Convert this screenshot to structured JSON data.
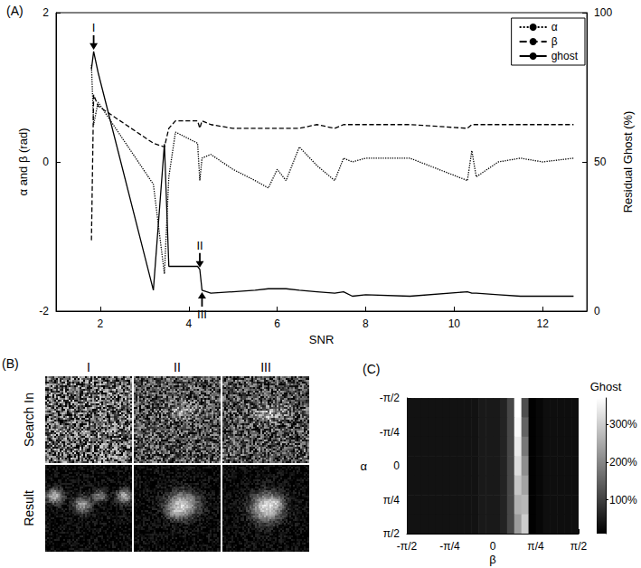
{
  "chart_data": [
    {
      "type": "line",
      "title": "(A)",
      "x_label": "SNR",
      "y_label": "α and β (rad)",
      "y2_label": "Residual Ghost (%)",
      "x": [
        1.8,
        1.85,
        1.95,
        3.2,
        3.45,
        3.55,
        3.7,
        4.2,
        4.25,
        4.3,
        4.5,
        5.0,
        5.5,
        5.8,
        6.0,
        6.2,
        6.5,
        6.9,
        7.3,
        7.5,
        7.7,
        8.0,
        9.0,
        10.3,
        10.4,
        10.5,
        11.0,
        11.5,
        12.0,
        12.7
      ],
      "series": [
        {
          "name": "α",
          "color": "#000000",
          "line_style": "dotted",
          "values": [
            1.3,
            0.5,
            0.8,
            -0.3,
            -1.5,
            -0.2,
            0.4,
            0.25,
            -0.25,
            0.05,
            0.1,
            -0.1,
            -0.25,
            -0.35,
            -0.1,
            -0.25,
            0.2,
            -0.05,
            -0.25,
            0.05,
            0.0,
            0.05,
            0.05,
            -0.25,
            0.15,
            -0.2,
            0.0,
            0.05,
            0.0,
            0.05
          ]
        },
        {
          "name": "β",
          "color": "#000000",
          "line_style": "dashed",
          "values": [
            -1.05,
            0.9,
            0.75,
            0.25,
            0.2,
            0.45,
            0.55,
            0.55,
            0.45,
            0.55,
            0.5,
            0.45,
            0.45,
            0.45,
            0.45,
            0.45,
            0.45,
            0.5,
            0.45,
            0.5,
            0.5,
            0.5,
            0.5,
            0.45,
            0.5,
            0.5,
            0.5,
            0.5,
            0.5,
            0.5
          ]
        },
        {
          "name": "ghost",
          "color": "#000000",
          "line_style": "solid",
          "axis": "y2",
          "values": [
            81,
            87,
            80,
            7,
            56,
            15,
            15,
            15,
            14,
            7,
            6,
            6.5,
            7,
            7.5,
            7.5,
            7.5,
            7,
            6.5,
            6,
            6.5,
            5,
            5.5,
            5,
            6.5,
            6,
            6,
            5.5,
            5,
            5,
            5
          ],
          "annotations": [
            {
              "text": "I",
              "x": 1.85,
              "y": 87,
              "position": "above"
            },
            {
              "text": "II",
              "x": 4.25,
              "y": 14,
              "position": "above"
            },
            {
              "text": "III",
              "x": 4.3,
              "y": 7,
              "position": "below"
            }
          ]
        }
      ],
      "xlim": [
        1,
        13
      ],
      "xticks": [
        2,
        4,
        6,
        8,
        10,
        12
      ],
      "ylim": [
        -2,
        2
      ],
      "yticks": [
        -2,
        0,
        2
      ],
      "y2lim": [
        0,
        100
      ],
      "y2ticks": [
        0,
        50,
        100
      ],
      "grid": false,
      "legend": "top-right"
    },
    {
      "type": "image_grid",
      "title": "(B)",
      "columns": [
        "I",
        "II",
        "III"
      ],
      "rows": [
        "Search In",
        "Result"
      ]
    },
    {
      "type": "heatmap",
      "title": "(C)",
      "x_label": "β",
      "y_label": "α",
      "x": [
        -1.506,
        -1.374,
        -1.244,
        -1.113,
        -0.982,
        -0.851,
        -0.72,
        -0.589,
        -0.458,
        -0.327,
        -0.196,
        -0.065,
        0.065,
        0.196,
        0.327,
        0.458,
        0.589,
        0.72,
        0.851,
        0.982,
        1.113,
        1.244,
        1.374,
        1.506
      ],
      "y": [
        -1.346,
        -0.898,
        -0.449,
        0,
        0.449,
        0.898,
        1.346
      ],
      "values": [
        [
          35,
          35,
          35,
          35,
          35,
          35,
          35,
          35,
          35,
          35,
          45,
          45,
          45,
          60,
          110,
          370,
          120,
          12,
          20,
          30,
          30,
          30,
          30,
          30
        ],
        [
          35,
          35,
          35,
          35,
          35,
          35,
          35,
          35,
          35,
          35,
          45,
          45,
          45,
          60,
          110,
          360,
          150,
          12,
          20,
          30,
          30,
          30,
          30,
          30
        ],
        [
          35,
          35,
          35,
          35,
          35,
          35,
          35,
          35,
          35,
          35,
          45,
          45,
          45,
          60,
          110,
          340,
          180,
          12,
          20,
          30,
          30,
          30,
          30,
          30
        ],
        [
          35,
          35,
          35,
          35,
          35,
          35,
          35,
          35,
          35,
          35,
          45,
          45,
          45,
          60,
          110,
          320,
          210,
          12,
          20,
          30,
          30,
          30,
          30,
          30
        ],
        [
          35,
          35,
          35,
          35,
          35,
          35,
          35,
          35,
          35,
          35,
          45,
          45,
          45,
          60,
          110,
          290,
          240,
          12,
          20,
          30,
          30,
          30,
          30,
          30
        ],
        [
          35,
          35,
          35,
          35,
          35,
          35,
          35,
          35,
          35,
          35,
          45,
          45,
          45,
          60,
          110,
          260,
          270,
          12,
          20,
          30,
          30,
          30,
          30,
          30
        ],
        [
          35,
          35,
          35,
          35,
          35,
          35,
          35,
          35,
          35,
          35,
          45,
          45,
          45,
          60,
          110,
          230,
          300,
          12,
          20,
          30,
          30,
          30,
          30,
          30
        ]
      ],
      "xlim": [
        -1.5708,
        1.5708
      ],
      "xticks": [
        {
          "value": -1.5708,
          "label": "-π/2"
        },
        {
          "value": -0.7854,
          "label": "-π/4"
        },
        0,
        {
          "value": 0.7854,
          "label": "π/4"
        },
        {
          "value": 1.5708,
          "label": "π/2"
        }
      ],
      "ylim": [
        -1.5708,
        1.5708
      ],
      "yticks": [
        {
          "value": -1.5708,
          "label": "-π/2"
        },
        {
          "value": -0.7854,
          "label": "-π/4"
        },
        0,
        {
          "value": 0.7854,
          "label": "π/4"
        },
        {
          "value": 1.5708,
          "label": "π/2"
        }
      ],
      "colorbar": {
        "label": "Ghost",
        "range": [
          10,
          370
        ],
        "ticks": [
          {
            "value": 100,
            "label": "100%"
          },
          {
            "value": 200,
            "label": "200%"
          },
          {
            "value": 300,
            "label": "300%"
          }
        ]
      }
    }
  ]
}
